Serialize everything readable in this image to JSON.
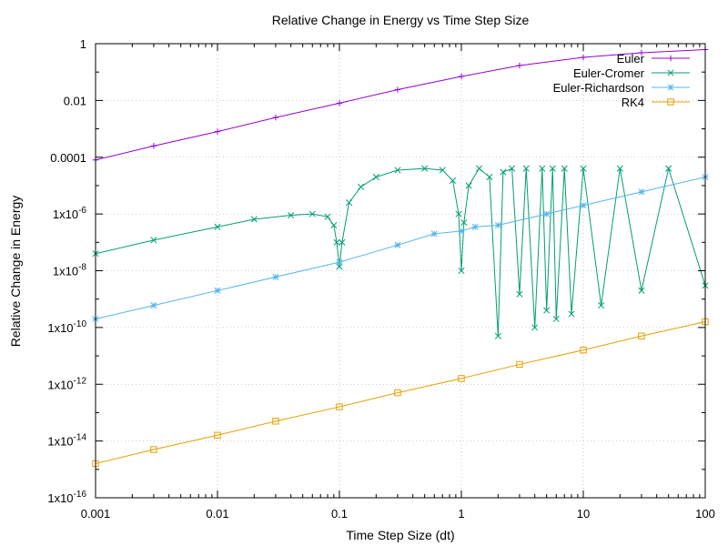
{
  "chart_data": {
    "type": "line",
    "title": "Relative Change in Energy vs Time Step Size",
    "xlabel": "Time Step Size (dt)",
    "ylabel": "Relative Change in Energy",
    "xscale": "log",
    "yscale": "log",
    "xlim": [
      0.001,
      100
    ],
    "ylim": [
      1e-16,
      1
    ],
    "grid": true,
    "legend_position": "top-right",
    "x_tick_labels": [
      "0.001",
      "0.01",
      "0.1",
      "1",
      "10",
      "100"
    ],
    "x_tick_values": [
      0.001,
      0.01,
      0.1,
      1,
      10,
      100
    ],
    "y_tick_labels": [
      {
        "base": "1x10",
        "exp": "-16",
        "value": 1e-16
      },
      {
        "base": "1x10",
        "exp": "-14",
        "value": 1e-14
      },
      {
        "base": "1x10",
        "exp": "-12",
        "value": 1e-12
      },
      {
        "base": "1x10",
        "exp": "-10",
        "value": 1e-10
      },
      {
        "base": "1x10",
        "exp": "-8",
        "value": 1e-08
      },
      {
        "base": "1x10",
        "exp": "-6",
        "value": 1e-06
      },
      {
        "base": "0.0001",
        "exp": "",
        "value": 0.0001
      },
      {
        "base": "0.01",
        "exp": "",
        "value": 0.01
      },
      {
        "base": "1",
        "exp": "",
        "value": 1
      }
    ],
    "series": [
      {
        "name": "Euler",
        "color": "#9400d3",
        "marker": "plus",
        "x": [
          0.001,
          0.003,
          0.01,
          0.03,
          0.1,
          0.3,
          1,
          3,
          10,
          30,
          100
        ],
        "y": [
          8e-05,
          0.00025,
          0.0008,
          0.0025,
          0.008,
          0.024,
          0.07,
          0.17,
          0.33,
          0.48,
          0.62
        ]
      },
      {
        "name": "Euler-Cromer",
        "color": "#009e73",
        "marker": "x",
        "x": [
          0.001,
          0.003,
          0.01,
          0.02,
          0.04,
          0.06,
          0.08,
          0.09,
          0.095,
          0.1,
          0.105,
          0.12,
          0.15,
          0.2,
          0.3,
          0.5,
          0.7,
          0.85,
          0.95,
          1.0,
          1.05,
          1.15,
          1.4,
          1.7,
          2.0,
          2.2,
          2.6,
          3.0,
          3.4,
          4.0,
          4.6,
          5.0,
          5.6,
          6.0,
          7.0,
          8.0,
          10,
          14,
          20,
          30,
          50,
          100
        ],
        "y": [
          4e-08,
          1.2e-07,
          3.5e-07,
          6.5e-07,
          9e-07,
          1e-06,
          8e-07,
          4e-07,
          1e-07,
          1.4e-08,
          1e-07,
          2.5e-06,
          9e-06,
          2e-05,
          3.5e-05,
          4e-05,
          3.5e-05,
          1.5e-05,
          1e-06,
          1e-08,
          5e-07,
          1e-05,
          4e-05,
          2e-05,
          5e-11,
          3e-05,
          4e-05,
          1.5e-09,
          4e-05,
          1e-10,
          4e-05,
          4e-10,
          4e-05,
          2e-10,
          4e-05,
          3e-10,
          4e-05,
          6e-10,
          4e-05,
          2e-09,
          4e-05,
          3e-09
        ]
      },
      {
        "name": "Euler-Richardson",
        "color": "#56b4e9",
        "marker": "star",
        "x": [
          0.001,
          0.003,
          0.01,
          0.03,
          0.1,
          0.3,
          0.6,
          1,
          1.3,
          2,
          5,
          10,
          30,
          100
        ],
        "y": [
          2e-10,
          6e-10,
          2e-09,
          6e-09,
          2e-08,
          8e-08,
          2e-07,
          2.5e-07,
          3.5e-07,
          4e-07,
          1e-06,
          2e-06,
          6e-06,
          2e-05
        ]
      },
      {
        "name": "RK4",
        "color": "#e69f00",
        "marker": "square",
        "x": [
          0.001,
          0.003,
          0.01,
          0.03,
          0.1,
          0.3,
          1,
          3,
          10,
          30,
          100
        ],
        "y": [
          1.6e-15,
          5e-15,
          1.6e-14,
          5e-14,
          1.6e-13,
          5e-13,
          1.6e-12,
          5e-12,
          1.6e-11,
          5e-11,
          1.6e-10
        ]
      }
    ]
  }
}
